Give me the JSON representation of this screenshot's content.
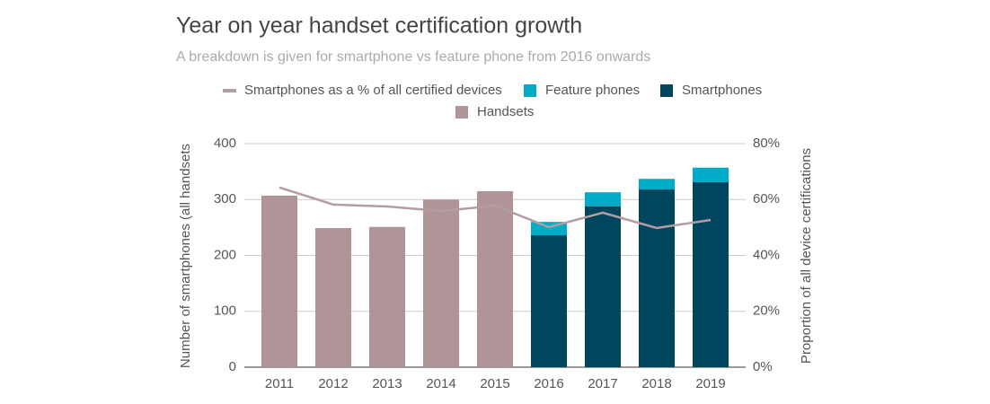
{
  "chart_data": {
    "type": "bar",
    "title": "Year on year handset certification growth",
    "subtitle": "A breakdown is given for smartphone vs feature phone from 2016 onwards",
    "y_label": "Number of smartphones (all handsets",
    "y2_label": "Proportion of all device certifications",
    "categories": [
      "2011",
      "2012",
      "2013",
      "2014",
      "2015",
      "2016",
      "2017",
      "2018",
      "2019"
    ],
    "series": [
      {
        "name": "Smartphones as a % of all certified devices",
        "type": "line",
        "axis": "y2",
        "color": "#b39da0",
        "values": [
          64.3,
          58.2,
          57.5,
          55.9,
          57.8,
          50.1,
          55.3,
          49.8,
          52.7
        ]
      },
      {
        "name": "Feature phones",
        "type": "bar",
        "color": "#00acc8",
        "values": [
          null,
          null,
          null,
          null,
          null,
          24,
          25,
          19,
          26
        ]
      },
      {
        "name": "Smartphones",
        "type": "bar",
        "color": "#00465e",
        "values": [
          null,
          null,
          null,
          null,
          null,
          236,
          288,
          318,
          331
        ]
      },
      {
        "name": "Handsets",
        "type": "bar",
        "color": "#b09498",
        "values": [
          307,
          249,
          251,
          300,
          315,
          null,
          null,
          null,
          null
        ]
      }
    ],
    "stacked": true,
    "ylim": [
      0,
      400
    ],
    "yticks": [
      0,
      100,
      200,
      300,
      400
    ],
    "y2lim": [
      0,
      80
    ],
    "y2ticks": [
      {
        "value": 0,
        "label": "0%"
      },
      {
        "value": 20,
        "label": "20%"
      },
      {
        "value": 40,
        "label": "40%"
      },
      {
        "value": 60,
        "label": "60%"
      },
      {
        "value": 80,
        "label": "80%"
      }
    ],
    "grid": true,
    "legend": "top"
  }
}
